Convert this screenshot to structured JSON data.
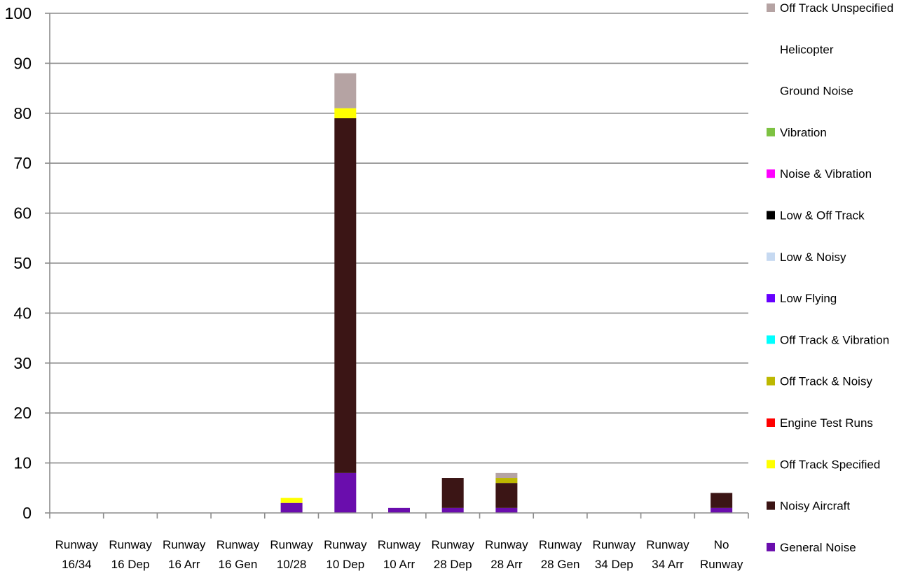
{
  "chart_data": {
    "type": "bar",
    "stacked": true,
    "categories": [
      [
        "Runway",
        "16/34"
      ],
      [
        "Runway",
        "16 Dep"
      ],
      [
        "Runway",
        "16 Arr"
      ],
      [
        "Runway",
        "16 Gen"
      ],
      [
        "Runway",
        "10/28"
      ],
      [
        "Runway",
        "10 Dep"
      ],
      [
        "Runway",
        "10 Arr"
      ],
      [
        "Runway",
        "28 Dep"
      ],
      [
        "Runway",
        "28 Arr"
      ],
      [
        "Runway",
        "28 Gen"
      ],
      [
        "Runway",
        "34 Dep"
      ],
      [
        "Runway",
        "34 Arr"
      ],
      [
        "No",
        "Runway"
      ]
    ],
    "ylim": [
      0,
      100
    ],
    "yticks": [
      0,
      10,
      20,
      30,
      40,
      50,
      60,
      70,
      80,
      90,
      100
    ],
    "grid": true,
    "legend_position": "right",
    "series": [
      {
        "name": "General Noise",
        "color": "#6A0DAD",
        "values": [
          0,
          0,
          0,
          0,
          2,
          8,
          1,
          1,
          1,
          0,
          0,
          0,
          1
        ]
      },
      {
        "name": "Noisy Aircraft",
        "color": "#3B1515",
        "values": [
          0,
          0,
          0,
          0,
          0,
          71,
          0,
          6,
          5,
          0,
          0,
          0,
          3
        ]
      },
      {
        "name": "Off Track Specified",
        "color": "#FFFF00",
        "values": [
          0,
          0,
          0,
          0,
          1,
          2,
          0,
          0,
          0,
          0,
          0,
          0,
          0
        ]
      },
      {
        "name": "Engine Test Runs",
        "color": "#FF0000",
        "values": [
          0,
          0,
          0,
          0,
          0,
          0,
          0,
          0,
          0,
          0,
          0,
          0,
          0
        ]
      },
      {
        "name": "Off Track & Noisy",
        "color": "#BDB800",
        "values": [
          0,
          0,
          0,
          0,
          0,
          0,
          0,
          0,
          1,
          0,
          0,
          0,
          0
        ]
      },
      {
        "name": "Off Track & Vibration",
        "color": "#00FFFF",
        "values": [
          0,
          0,
          0,
          0,
          0,
          0,
          0,
          0,
          0,
          0,
          0,
          0,
          0
        ]
      },
      {
        "name": "Low Flying",
        "color": "#6600FF",
        "values": [
          0,
          0,
          0,
          0,
          0,
          0,
          0,
          0,
          0,
          0,
          0,
          0,
          0
        ]
      },
      {
        "name": "Low & Noisy",
        "color": "#C6D9F1",
        "values": [
          0,
          0,
          0,
          0,
          0,
          0,
          0,
          0,
          0,
          0,
          0,
          0,
          0
        ]
      },
      {
        "name": "Low & Off Track",
        "color": "#000000",
        "values": [
          0,
          0,
          0,
          0,
          0,
          0,
          0,
          0,
          0,
          0,
          0,
          0,
          0
        ]
      },
      {
        "name": "Noise & Vibration",
        "color": "#FF00FF",
        "values": [
          0,
          0,
          0,
          0,
          0,
          0,
          0,
          0,
          0,
          0,
          0,
          0,
          0
        ]
      },
      {
        "name": "Vibration",
        "color": "#7DC242",
        "values": [
          0,
          0,
          0,
          0,
          0,
          0,
          0,
          0,
          0,
          0,
          0,
          0,
          0
        ]
      },
      {
        "name": "Ground Noise",
        "color": "",
        "values": [
          0,
          0,
          0,
          0,
          0,
          0,
          0,
          0,
          0,
          0,
          0,
          0,
          0
        ]
      },
      {
        "name": "Helicopter",
        "color": "",
        "values": [
          0,
          0,
          0,
          0,
          0,
          0,
          0,
          0,
          0,
          0,
          0,
          0,
          0
        ]
      },
      {
        "name": "Off Track Unspecified",
        "color": "#B5A3A3",
        "values": [
          0,
          0,
          0,
          0,
          0,
          7,
          0,
          0,
          1,
          0,
          0,
          0,
          0
        ]
      }
    ]
  }
}
